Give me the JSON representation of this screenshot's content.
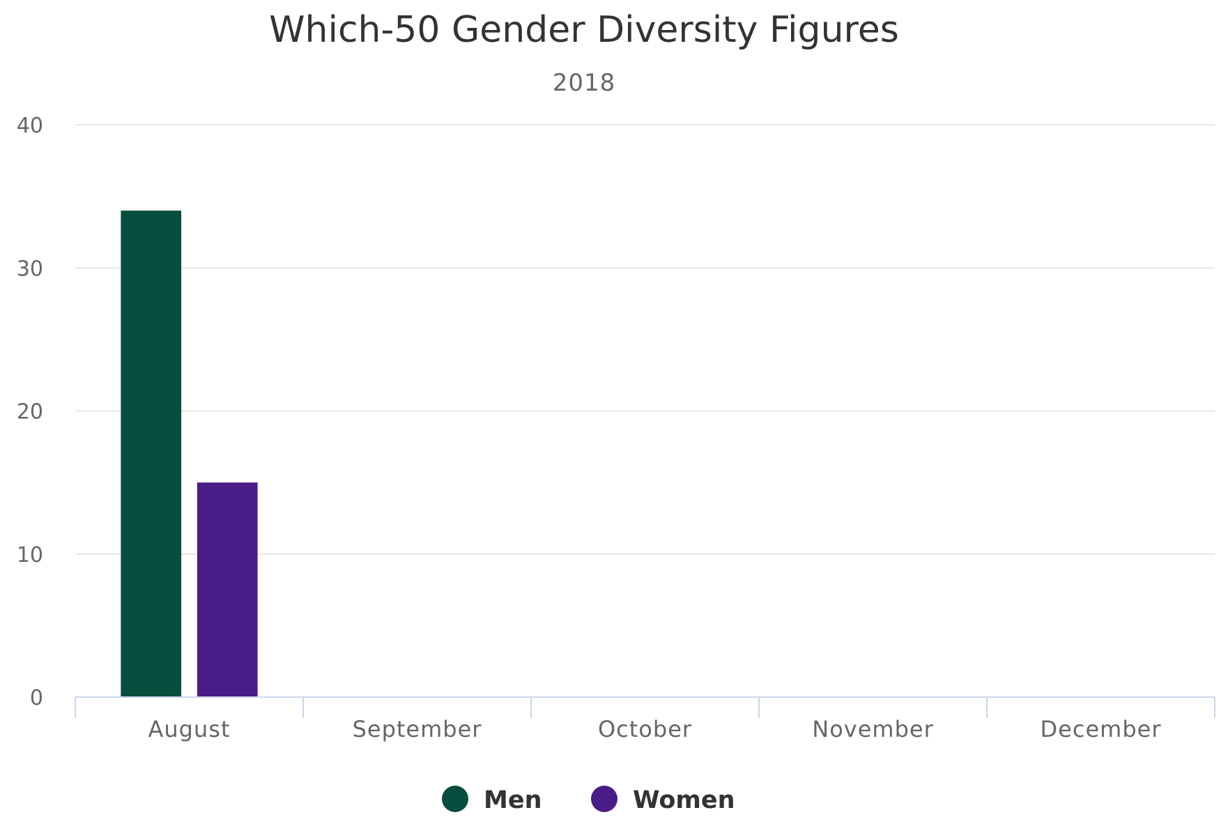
{
  "chart_data": {
    "type": "bar",
    "title": "Which-50 Gender Diversity Figures",
    "subtitle": "2018",
    "xlabel": "",
    "ylabel": "",
    "categories": [
      "August",
      "September",
      "October",
      "November",
      "December"
    ],
    "series": [
      {
        "name": "Men",
        "color": "#084d3e",
        "values": [
          34,
          null,
          null,
          null,
          null
        ]
      },
      {
        "name": "Women",
        "color": "#4a1c88",
        "values": [
          15,
          null,
          null,
          null,
          null
        ]
      }
    ],
    "ylim": [
      0,
      40
    ],
    "yticks": [
      0,
      10,
      20,
      30,
      40
    ],
    "grid": true,
    "legend_position": "bottom-center"
  }
}
